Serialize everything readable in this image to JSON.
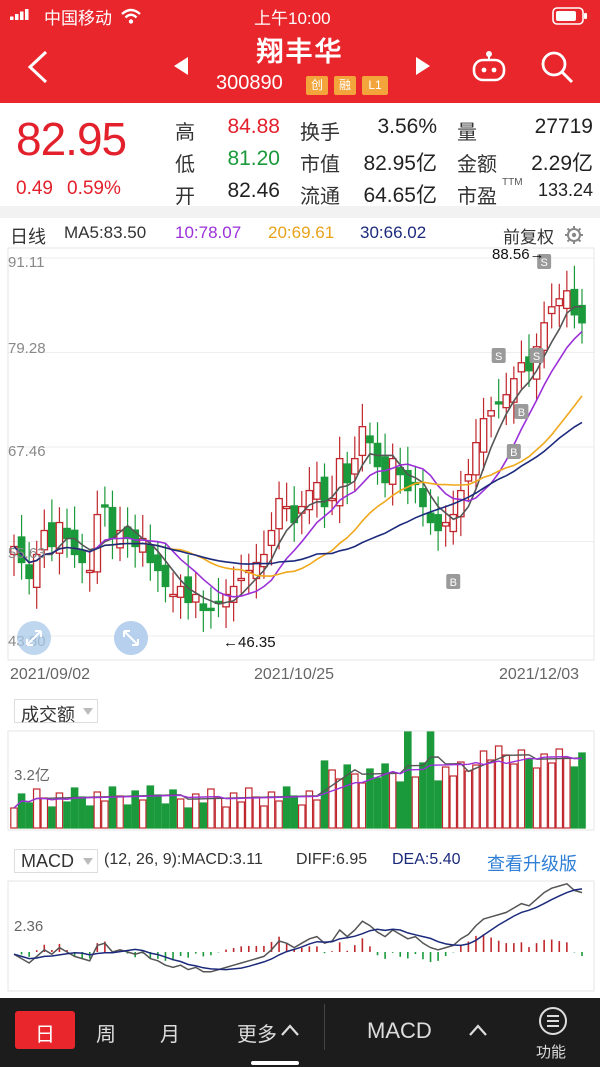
{
  "status_bar": {
    "carrier": "中国移动",
    "time": "上午10:00"
  },
  "header": {
    "title": "翔丰华",
    "code": "300890",
    "tags": [
      "创",
      "融",
      "L1"
    ]
  },
  "quote": {
    "price": "82.95",
    "change": "0.49",
    "change_pct": "0.59%",
    "high_label": "高",
    "high": "84.88",
    "low_label": "低",
    "low": "81.20",
    "open_label": "开",
    "open": "82.46",
    "turnover_label": "换手",
    "turnover": "3.56%",
    "mktcap_label": "市值",
    "mktcap": "82.95亿",
    "float_label": "流通",
    "float": "64.65亿",
    "vol_label": "量",
    "vol": "27719",
    "amount_label": "金额",
    "amount": "2.29亿",
    "pe_label": "市盈",
    "pe_sup": "TTM",
    "pe": "133.24"
  },
  "kline": {
    "period_label": "日线",
    "ma5": "MA5:83.50",
    "ma10": "10:78.07",
    "ma20": "20:69.61",
    "ma30": "30:66.02",
    "adjust_label": "前复权",
    "y_ticks": [
      "91.11",
      "79.28",
      "67.46",
      "55.63",
      "43.80"
    ],
    "max_note": "88.56→",
    "min_note": "←46.35",
    "dates": [
      "2021/09/02",
      "2021/10/25",
      "2021/12/03"
    ],
    "signals": [
      "S",
      "S",
      "S",
      "B",
      "B",
      "B"
    ]
  },
  "volume": {
    "label": "成交额",
    "tick": "3.2亿"
  },
  "macd": {
    "label": "MACD",
    "params": "(12, 26, 9):MACD:3.11",
    "diff": "DIFF:6.95",
    "dea": "DEA:5.40",
    "upgrade_link": "查看升级版",
    "tick": "2.36"
  },
  "tabs": {
    "day": "日",
    "week": "周",
    "month": "月",
    "more": "更多",
    "indicator": "MACD",
    "func": "功能"
  },
  "colors": {
    "up": "#e3212c",
    "down": "#1a9a3a",
    "ma5": "#555555",
    "ma10": "#9b30d9",
    "ma20": "#f0a81c",
    "ma30": "#1c2a7c"
  }
}
